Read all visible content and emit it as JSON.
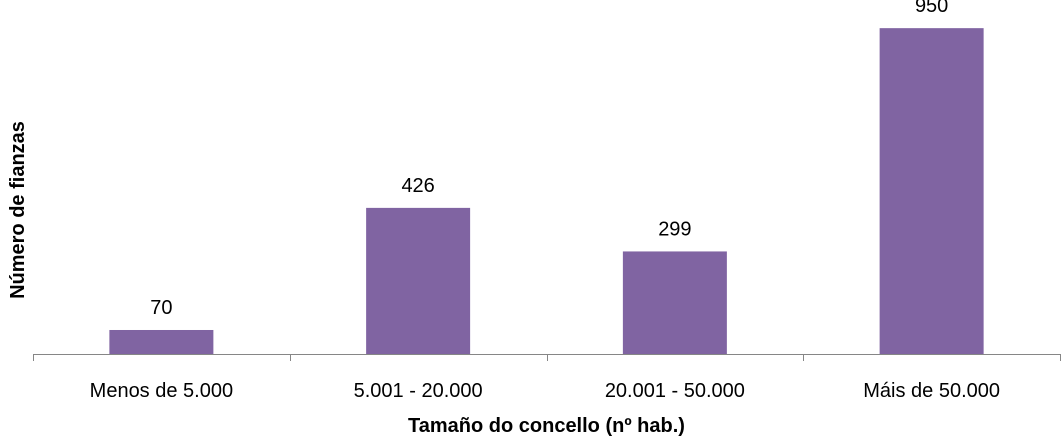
{
  "chart_data": {
    "type": "bar",
    "categories": [
      "Menos de 5.000",
      "5.001 - 20.000",
      "20.001 - 50.000",
      "Máis de 50.000"
    ],
    "values": [
      70,
      426,
      299,
      950
    ],
    "data_labels": [
      "70",
      "426",
      "299",
      "950"
    ],
    "title": "",
    "xlabel": "Tamaño do concello (nº hab.)",
    "ylabel": "Número de fianzas",
    "ylim": [
      0,
      1000
    ],
    "grid": false,
    "legend": "none",
    "colors": {
      "bar": "#8064a2",
      "axis": "#868686"
    }
  }
}
